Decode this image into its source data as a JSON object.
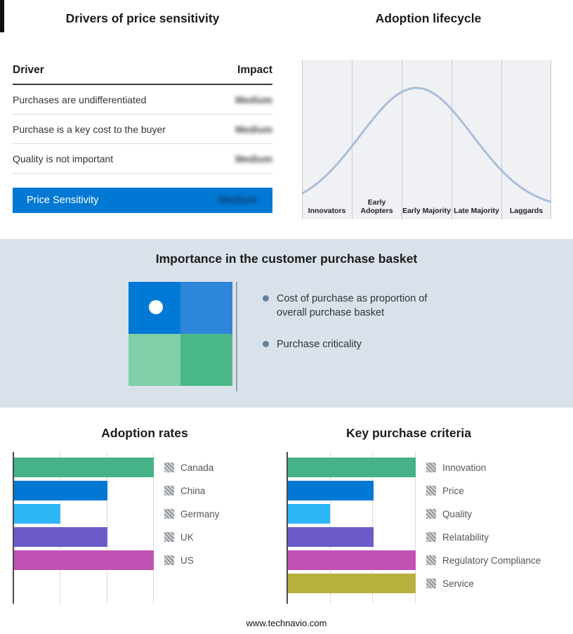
{
  "top": {
    "drivers": {
      "title": "Drivers of price sensitivity",
      "col_driver": "Driver",
      "col_impact": "Impact",
      "rows": [
        {
          "driver": "Purchases are undifferentiated",
          "impact": "Medium"
        },
        {
          "driver": "Purchase is a key cost to the buyer",
          "impact": "Medium"
        },
        {
          "driver": "Quality is not important",
          "impact": "Medium"
        }
      ],
      "summary": {
        "label": "Price Sensitivity",
        "impact": "Medium"
      }
    }
  },
  "basket": {
    "title": "Importance in the customer purchase basket",
    "bullets": [
      "Cost of purchase as proportion of overall purchase basket",
      "Purchase criticality"
    ]
  },
  "footer": "www.technavio.com",
  "colors": {
    "accent_blue": "#0078D4",
    "band_bg": "#D9E2EB",
    "curve": "#A9BED9",
    "green": "#45B287",
    "blue": "#0078D4",
    "cyan": "#2DB6F5",
    "purple": "#6A5BC9",
    "magenta": "#C251B4",
    "olive": "#B6B23D"
  },
  "chart_data": [
    {
      "type": "line",
      "title": "Adoption lifecycle",
      "x_labels": [
        "Innovators",
        "Early Adopters",
        "Early Majority",
        "Late Majority",
        "Laggards"
      ],
      "shape": "bell-curve",
      "peak_stage": "Early Majority",
      "grid": "vertical-dividers",
      "legend_position": "none"
    },
    {
      "type": "bar",
      "title": "Adoption rates",
      "orientation": "horizontal",
      "categories": [
        "Canada",
        "China",
        "Germany",
        "UK",
        "US"
      ],
      "values": [
        100,
        67,
        33,
        67,
        100
      ],
      "xlim": [
        0,
        100
      ],
      "gridlines": [
        33.3,
        66.7,
        100
      ],
      "colors": [
        "#45B287",
        "#0078D4",
        "#2DB6F5",
        "#6A5BC9",
        "#C251B4"
      ],
      "legend_position": "right"
    },
    {
      "type": "bar",
      "title": "Key purchase criteria",
      "orientation": "horizontal",
      "categories": [
        "Innovation",
        "Price",
        "Quality",
        "Relatability",
        "Regulatory Compliance",
        "Service"
      ],
      "values": [
        100,
        67,
        33,
        67,
        100,
        100
      ],
      "xlim": [
        0,
        100
      ],
      "gridlines": [
        33.3,
        66.7,
        100
      ],
      "colors": [
        "#45B287",
        "#0078D4",
        "#2DB6F5",
        "#6A5BC9",
        "#C251B4",
        "#B6B23D"
      ],
      "legend_position": "right"
    }
  ]
}
